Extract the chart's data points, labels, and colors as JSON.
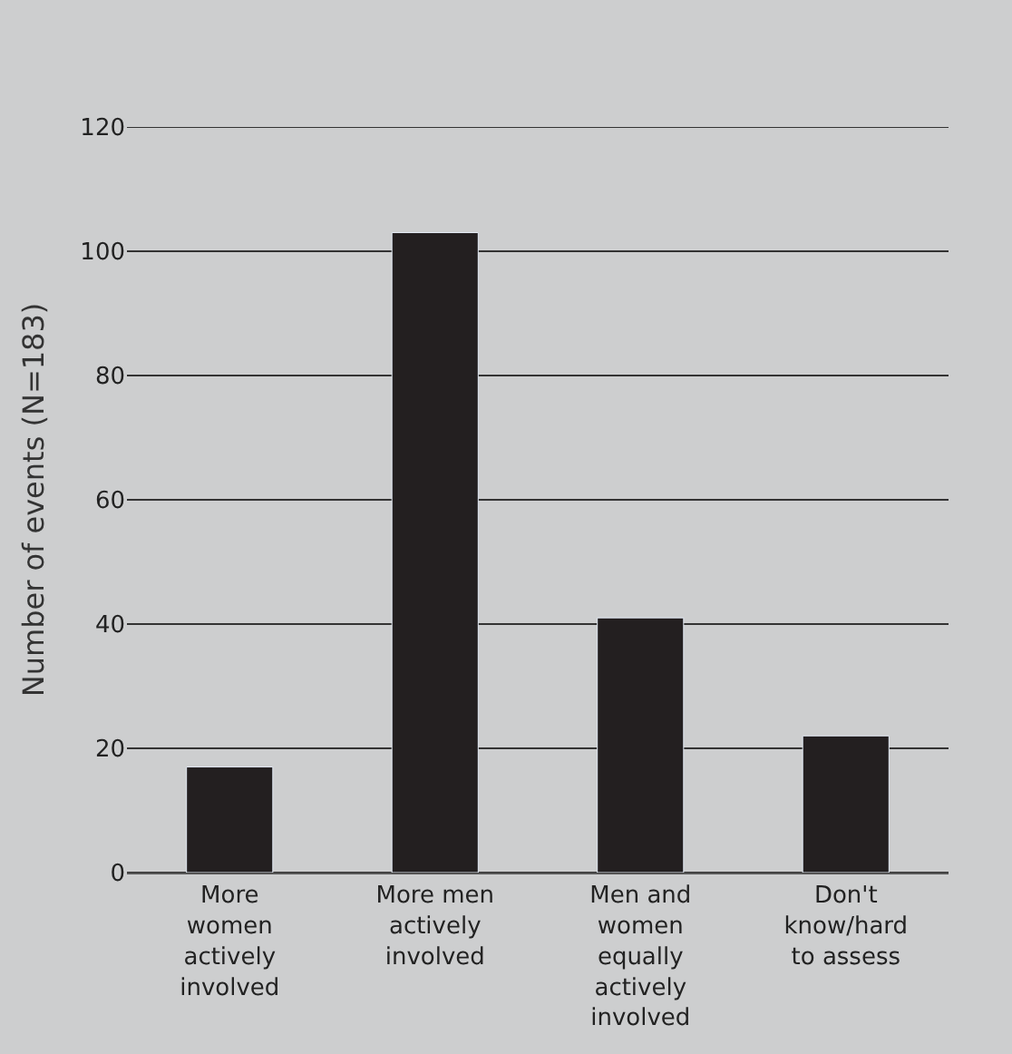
{
  "chart_data": {
    "type": "bar",
    "ylabel": "Number of events (N=183)",
    "categories": [
      "More women actively involved",
      "More men actively involved",
      "Men and women equally actively involved",
      "Don't know/hard to assess"
    ],
    "values": [
      17,
      103,
      41,
      22
    ],
    "color": "#231f20",
    "ylim": [
      0,
      120
    ],
    "yticks": [
      0,
      20,
      40,
      60,
      80,
      100,
      120
    ],
    "grid": "y"
  }
}
